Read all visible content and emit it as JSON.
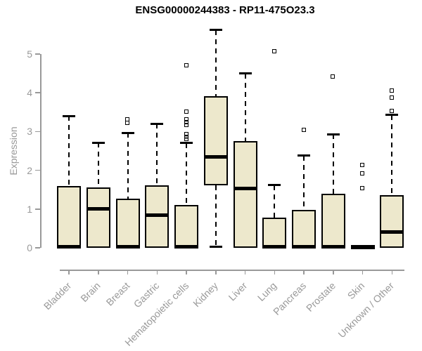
{
  "title": "ENSG00000244383 - RP11-475O23.3",
  "colors": {
    "box_fill": "#EDE8CC",
    "box_border": "#000000",
    "axis": "#999999",
    "tick_text": "#999999",
    "title_text": "#000000"
  },
  "chart_data": {
    "type": "boxplot",
    "title": "ENSG00000244383 - RP11-475O23.3",
    "xlabel": "",
    "ylabel": "Expression",
    "ylim": [
      0,
      5.7
    ],
    "yticks": [
      0,
      1,
      2,
      3,
      4,
      5
    ],
    "grid": false,
    "legend": "none",
    "categories": [
      "Bladder",
      "Brain",
      "Breast",
      "Gastric",
      "Hematopoietic cells",
      "Kidney",
      "Liver",
      "Lung",
      "Pancreas",
      "Prostate",
      "Skin",
      "Unknown / Other"
    ],
    "boxes": [
      {
        "label": "Bladder",
        "whisker_low": 0,
        "q1": 0,
        "median": 0.03,
        "q3": 1.6,
        "whisker_high": 3.4,
        "outliers": []
      },
      {
        "label": "Brain",
        "whisker_low": 0,
        "q1": 0,
        "median": 1.0,
        "q3": 1.56,
        "whisker_high": 2.71,
        "outliers": []
      },
      {
        "label": "Breast",
        "whisker_low": 0,
        "q1": 0,
        "median": 0.03,
        "q3": 1.26,
        "whisker_high": 2.97,
        "outliers": [
          3.22,
          3.3
        ]
      },
      {
        "label": "Gastric",
        "whisker_low": 0,
        "q1": 0,
        "median": 0.85,
        "q3": 1.61,
        "whisker_high": 3.2,
        "outliers": []
      },
      {
        "label": "Hematopoietic cells",
        "whisker_low": 0,
        "q1": 0,
        "median": 0.03,
        "q3": 1.1,
        "whisker_high": 2.7,
        "outliers": [
          2.79,
          2.85,
          2.92,
          3.16,
          3.24,
          3.3,
          3.51,
          4.7
        ]
      },
      {
        "label": "Kidney",
        "whisker_low": 0.03,
        "q1": 1.62,
        "median": 2.35,
        "q3": 3.91,
        "whisker_high": 5.62,
        "outliers": []
      },
      {
        "label": "Liver",
        "whisker_low": 0,
        "q1": 0,
        "median": 1.53,
        "q3": 2.76,
        "whisker_high": 4.5,
        "outliers": []
      },
      {
        "label": "Lung",
        "whisker_low": 0,
        "q1": 0,
        "median": 0.03,
        "q3": 0.78,
        "whisker_high": 1.62,
        "outliers": [
          5.07
        ]
      },
      {
        "label": "Pancreas",
        "whisker_low": 0,
        "q1": 0,
        "median": 0.03,
        "q3": 0.97,
        "whisker_high": 2.38,
        "outliers": [
          3.03
        ]
      },
      {
        "label": "Prostate",
        "whisker_low": 0,
        "q1": 0,
        "median": 0.03,
        "q3": 1.39,
        "whisker_high": 2.93,
        "outliers": [
          4.42
        ]
      },
      {
        "label": "Skin",
        "whisker_low": 0,
        "q1": 0,
        "median": 0.02,
        "q3": 0.03,
        "whisker_high": 0.03,
        "outliers": [
          1.53,
          1.92,
          2.12
        ]
      },
      {
        "label": "Unknown / Other",
        "whisker_low": 0,
        "q1": 0,
        "median": 0.4,
        "q3": 1.36,
        "whisker_high": 3.43,
        "outliers": [
          3.53,
          3.87,
          4.04
        ]
      }
    ]
  }
}
